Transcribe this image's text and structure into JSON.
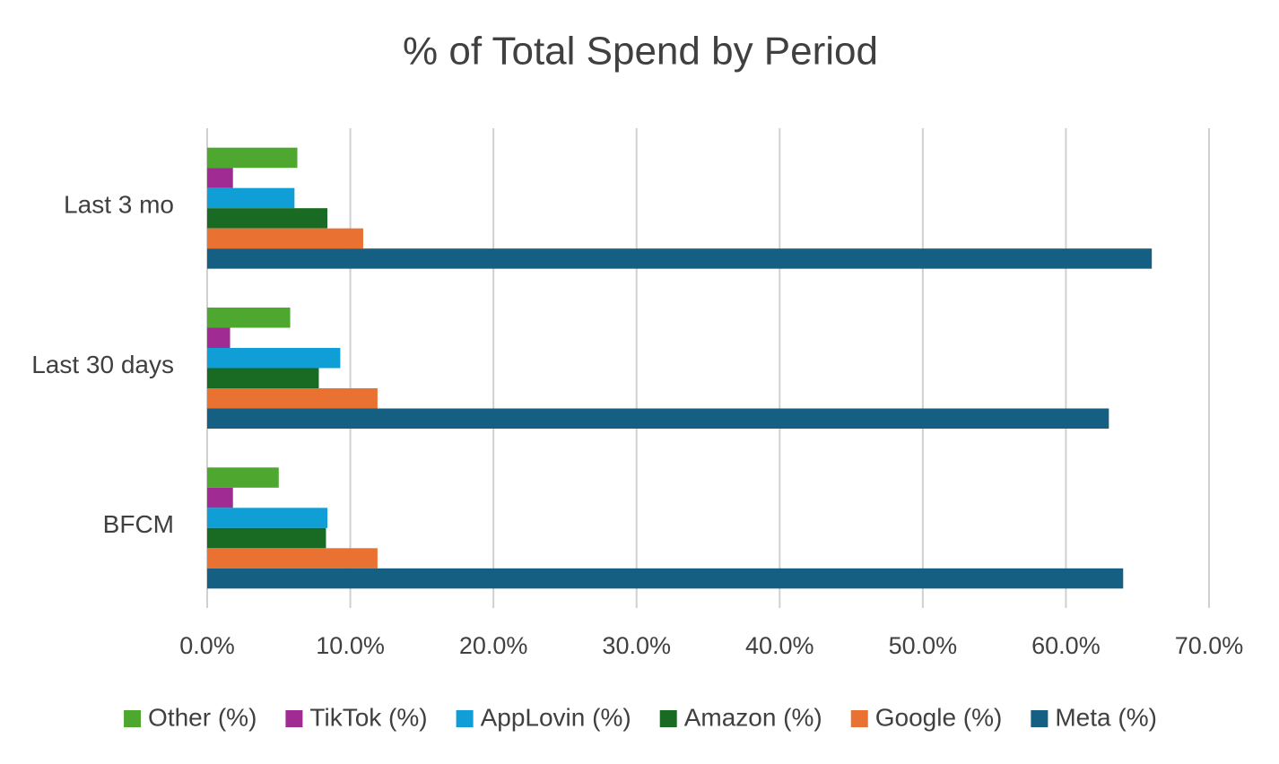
{
  "chart_data": {
    "type": "hbar",
    "title": "% of Total Spend by Period",
    "categories": [
      "Last 3 mo",
      "Last 30 days",
      "BFCM"
    ],
    "series": [
      {
        "name": "Other (%)",
        "color": "#4ea72e",
        "values": [
          6.3,
          5.8,
          5.0
        ]
      },
      {
        "name": "TikTok (%)",
        "color": "#a02b93",
        "values": [
          1.8,
          1.6,
          1.8
        ]
      },
      {
        "name": "AppLovin (%)",
        "color": "#0f9ed5",
        "values": [
          6.1,
          9.3,
          8.4
        ]
      },
      {
        "name": "Amazon (%)",
        "color": "#196b24",
        "values": [
          8.4,
          7.8,
          8.3
        ]
      },
      {
        "name": "Google (%)",
        "color": "#e97132",
        "values": [
          10.9,
          11.9,
          11.9
        ]
      },
      {
        "name": "Meta (%)",
        "color": "#156082",
        "values": [
          66.0,
          63.0,
          64.0
        ]
      }
    ],
    "xlim": [
      0,
      70
    ],
    "xticks": [
      {
        "value": 0,
        "label": "0.0%"
      },
      {
        "value": 10,
        "label": "10.0%"
      },
      {
        "value": 20,
        "label": "20.0%"
      },
      {
        "value": 30,
        "label": "30.0%"
      },
      {
        "value": 40,
        "label": "40.0%"
      },
      {
        "value": 50,
        "label": "50.0%"
      },
      {
        "value": 60,
        "label": "60.0%"
      },
      {
        "value": 70,
        "label": "70.0%"
      }
    ],
    "grid": true,
    "legend": "bottom"
  }
}
